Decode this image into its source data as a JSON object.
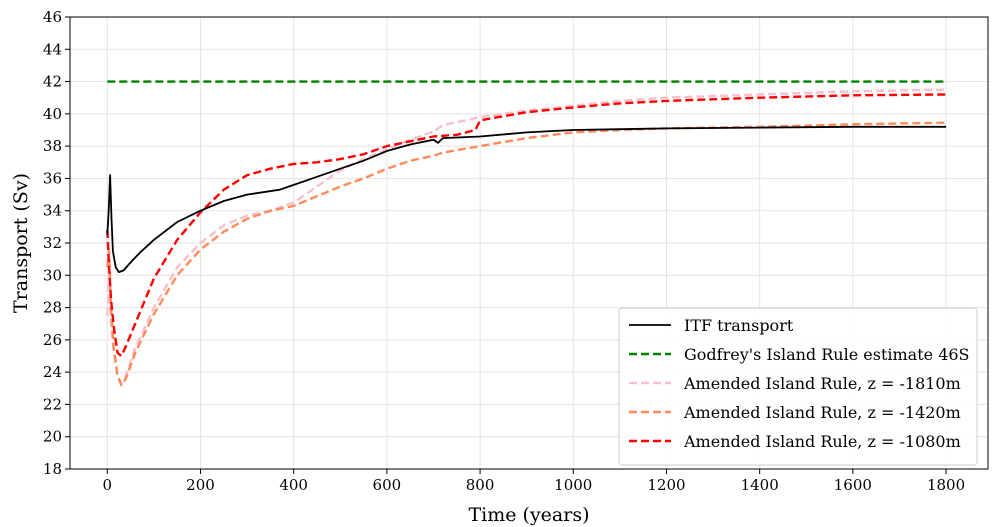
{
  "chart_data": {
    "type": "line",
    "xlabel": "Time (years)",
    "ylabel": "Transport (Sv)",
    "xlim": [
      -80,
      1890
    ],
    "ylim": [
      18,
      46
    ],
    "xticks": [
      0,
      200,
      400,
      600,
      800,
      1000,
      1200,
      1400,
      1600,
      1800
    ],
    "yticks": [
      18,
      20,
      22,
      24,
      26,
      28,
      30,
      32,
      34,
      36,
      38,
      40,
      42,
      44,
      46
    ],
    "grid": true,
    "legend_position": "lower-right",
    "series": [
      {
        "name": "ITF transport",
        "color": "#000000",
        "dash": "solid",
        "points": [
          [
            0,
            32.5
          ],
          [
            3,
            34
          ],
          [
            6,
            36.2
          ],
          [
            9,
            33.5
          ],
          [
            12,
            31.5
          ],
          [
            18,
            30.5
          ],
          [
            25,
            30.2
          ],
          [
            35,
            30.3
          ],
          [
            50,
            30.8
          ],
          [
            70,
            31.4
          ],
          [
            100,
            32.2
          ],
          [
            150,
            33.3
          ],
          [
            200,
            34.0
          ],
          [
            250,
            34.6
          ],
          [
            300,
            35.0
          ],
          [
            370,
            35.3
          ],
          [
            400,
            35.6
          ],
          [
            450,
            36.1
          ],
          [
            500,
            36.6
          ],
          [
            550,
            37.1
          ],
          [
            600,
            37.7
          ],
          [
            650,
            38.1
          ],
          [
            700,
            38.4
          ],
          [
            710,
            38.2
          ],
          [
            720,
            38.5
          ],
          [
            800,
            38.6
          ],
          [
            900,
            38.85
          ],
          [
            1000,
            39.0
          ],
          [
            1100,
            39.05
          ],
          [
            1200,
            39.1
          ],
          [
            1400,
            39.15
          ],
          [
            1600,
            39.2
          ],
          [
            1800,
            39.2
          ]
        ]
      },
      {
        "name": "Godfrey's Island Rule estimate 46S",
        "color": "#008000",
        "dash": "dashed",
        "points": [
          [
            0,
            42
          ],
          [
            1800,
            42
          ]
        ]
      },
      {
        "name": "Amended Island Rule, z = -1810m",
        "color": "#f7c0cb",
        "dash": "dashed",
        "points": [
          [
            0,
            27.5
          ],
          [
            4,
            30
          ],
          [
            8,
            27
          ],
          [
            14,
            25.2
          ],
          [
            22,
            23.8
          ],
          [
            30,
            23.3
          ],
          [
            40,
            23.8
          ],
          [
            60,
            25.5
          ],
          [
            100,
            28
          ],
          [
            150,
            30.5
          ],
          [
            200,
            32.0
          ],
          [
            250,
            33.1
          ],
          [
            300,
            33.7
          ],
          [
            350,
            34.0
          ],
          [
            400,
            34.5
          ],
          [
            450,
            35.5
          ],
          [
            500,
            36.5
          ],
          [
            550,
            37.2
          ],
          [
            600,
            37.8
          ],
          [
            650,
            38.4
          ],
          [
            700,
            38.9
          ],
          [
            720,
            39.3
          ],
          [
            800,
            39.8
          ],
          [
            900,
            40.2
          ],
          [
            1000,
            40.5
          ],
          [
            1100,
            40.8
          ],
          [
            1200,
            41.0
          ],
          [
            1400,
            41.2
          ],
          [
            1600,
            41.4
          ],
          [
            1800,
            41.5
          ]
        ]
      },
      {
        "name": "Amended Island Rule, z = -1420m",
        "color": "#ff8a5c",
        "dash": "dashed",
        "points": [
          [
            0,
            30.5
          ],
          [
            4,
            31.5
          ],
          [
            8,
            28
          ],
          [
            14,
            25.5
          ],
          [
            22,
            23.8
          ],
          [
            30,
            23.2
          ],
          [
            40,
            23.6
          ],
          [
            60,
            25.2
          ],
          [
            100,
            27.6
          ],
          [
            150,
            30.0
          ],
          [
            200,
            31.6
          ],
          [
            250,
            32.7
          ],
          [
            300,
            33.5
          ],
          [
            350,
            34.0
          ],
          [
            400,
            34.3
          ],
          [
            450,
            34.9
          ],
          [
            500,
            35.5
          ],
          [
            550,
            36.0
          ],
          [
            600,
            36.6
          ],
          [
            650,
            37.1
          ],
          [
            700,
            37.4
          ],
          [
            720,
            37.6
          ],
          [
            800,
            38.0
          ],
          [
            900,
            38.5
          ],
          [
            1000,
            38.85
          ],
          [
            1100,
            39.0
          ],
          [
            1200,
            39.1
          ],
          [
            1400,
            39.2
          ],
          [
            1600,
            39.35
          ],
          [
            1800,
            39.45
          ]
        ]
      },
      {
        "name": "Amended Island Rule, z = -1080m",
        "color": "#ff0000",
        "dash": "dashed",
        "points": [
          [
            0,
            32.8
          ],
          [
            4,
            30.5
          ],
          [
            8,
            28.5
          ],
          [
            14,
            26.8
          ],
          [
            22,
            25.2
          ],
          [
            30,
            25.0
          ],
          [
            40,
            25.6
          ],
          [
            60,
            27.0
          ],
          [
            100,
            29.8
          ],
          [
            150,
            32.2
          ],
          [
            200,
            33.9
          ],
          [
            250,
            35.3
          ],
          [
            300,
            36.2
          ],
          [
            350,
            36.6
          ],
          [
            400,
            36.9
          ],
          [
            450,
            37.0
          ],
          [
            500,
            37.2
          ],
          [
            550,
            37.5
          ],
          [
            600,
            38.0
          ],
          [
            650,
            38.3
          ],
          [
            700,
            38.6
          ],
          [
            750,
            38.7
          ],
          [
            790,
            39.0
          ],
          [
            800,
            39.6
          ],
          [
            900,
            40.1
          ],
          [
            1000,
            40.4
          ],
          [
            1100,
            40.65
          ],
          [
            1200,
            40.8
          ],
          [
            1400,
            41.0
          ],
          [
            1600,
            41.15
          ],
          [
            1800,
            41.2
          ]
        ]
      }
    ]
  }
}
